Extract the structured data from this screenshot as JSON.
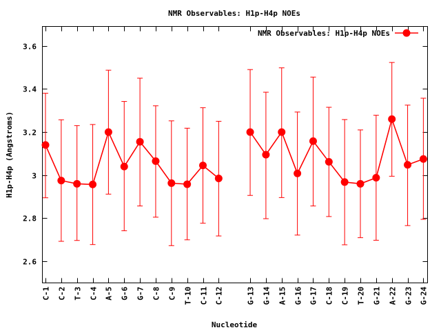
{
  "chart_data": {
    "type": "line",
    "title": "NMR Observables: H1p-H4p NOEs",
    "xlabel": "Nucleotide",
    "ylabel": "H1p-H4p (Angstroms)",
    "ylim": [
      2.5,
      3.69
    ],
    "yticks": [
      "2.6",
      "2.8",
      "3",
      "3.2",
      "3.4",
      "3.6"
    ],
    "ytick_values": [
      2.6,
      2.8,
      3.0,
      3.2,
      3.4,
      3.6
    ],
    "grid": false,
    "legend_position": "top-right",
    "color": "#ff0000",
    "categories": [
      "C-1",
      "C-2",
      "T-3",
      "C-4",
      "A-5",
      "G-6",
      "G-7",
      "C-8",
      "C-9",
      "T-10",
      "C-11",
      "C-12",
      "",
      "G-13",
      "G-14",
      "A-15",
      "G-16",
      "G-17",
      "C-18",
      "C-19",
      "T-20",
      "G-21",
      "A-22",
      "G-23",
      "G-24"
    ],
    "series": [
      {
        "name": "NMR Observables: H1p-H4p NOEs",
        "values": [
          3.14,
          2.975,
          2.96,
          2.957,
          3.2,
          3.04,
          3.155,
          3.065,
          2.963,
          2.958,
          3.045,
          2.985,
          null,
          3.2,
          3.095,
          3.2,
          3.008,
          3.158,
          3.062,
          2.968,
          2.96,
          2.988,
          3.26,
          3.048,
          3.075
        ],
        "err_low": [
          2.895,
          2.693,
          2.697,
          2.678,
          2.912,
          2.742,
          2.857,
          2.805,
          2.673,
          2.7,
          2.777,
          2.718,
          null,
          2.906,
          2.798,
          2.896,
          2.722,
          2.857,
          2.808,
          2.677,
          2.71,
          2.698,
          2.995,
          2.766,
          2.795
        ],
        "err_high": [
          3.38,
          3.257,
          3.23,
          3.235,
          3.487,
          3.342,
          3.45,
          3.322,
          3.252,
          3.218,
          3.313,
          3.25,
          null,
          3.49,
          3.385,
          3.498,
          3.293,
          3.455,
          3.315,
          3.258,
          3.21,
          3.278,
          3.523,
          3.325,
          3.357
        ]
      }
    ]
  }
}
